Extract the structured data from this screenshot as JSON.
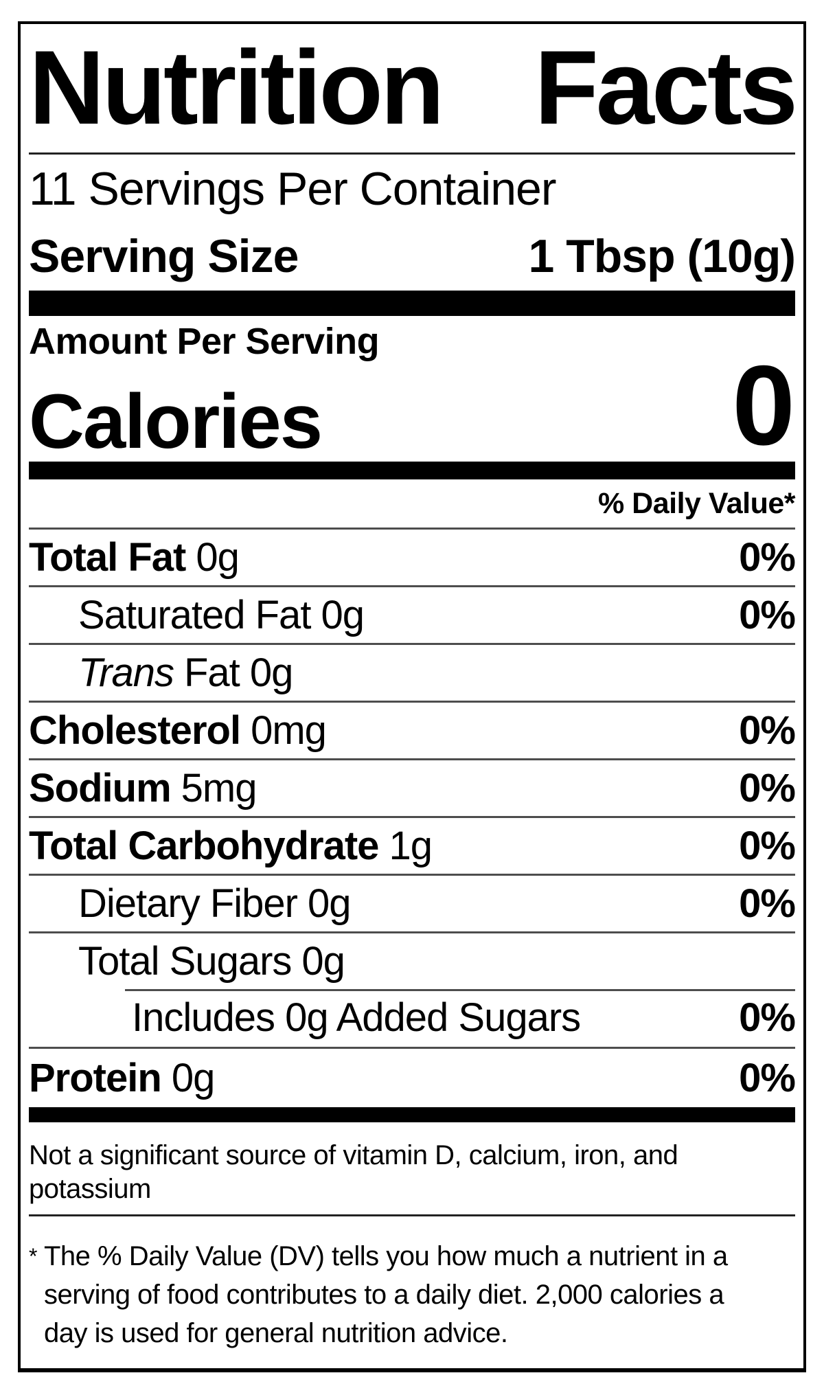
{
  "title": {
    "word1": "Nutrition",
    "word2": "Facts"
  },
  "servings_per_container": "11 Servings Per Container",
  "serving_size": {
    "label": "Serving Size",
    "value": "1 Tbsp (10g)"
  },
  "amount_per_serving_label": "Amount Per Serving",
  "calories": {
    "label": "Calories",
    "value": "0"
  },
  "daily_value_header": "% Daily Value*",
  "nutrients": [
    {
      "name": "Total Fat",
      "amount": "0g",
      "dv": "0%",
      "bold": true,
      "indent": 0,
      "italic": false,
      "partial_divider": false
    },
    {
      "name": "Saturated Fat",
      "amount": "0g",
      "dv": "0%",
      "bold": false,
      "indent": 1,
      "italic": false,
      "partial_divider": false
    },
    {
      "name": "Trans",
      "amount": "Fat 0g",
      "dv": "",
      "bold": false,
      "indent": 1,
      "italic": true,
      "partial_divider": false
    },
    {
      "name": "Cholesterol",
      "amount": "0mg",
      "dv": "0%",
      "bold": true,
      "indent": 0,
      "italic": false,
      "partial_divider": false
    },
    {
      "name": "Sodium",
      "amount": "5mg",
      "dv": "0%",
      "bold": true,
      "indent": 0,
      "italic": false,
      "partial_divider": false
    },
    {
      "name": "Total Carbohydrate",
      "amount": "1g",
      "dv": "0%",
      "bold": true,
      "indent": 0,
      "italic": false,
      "partial_divider": false
    },
    {
      "name": "Dietary Fiber",
      "amount": "0g",
      "dv": "0%",
      "bold": false,
      "indent": 1,
      "italic": false,
      "partial_divider": false
    },
    {
      "name": "Total Sugars",
      "amount": "0g",
      "dv": "",
      "bold": false,
      "indent": 1,
      "italic": false,
      "partial_divider": false
    },
    {
      "name": "Includes 0g Added Sugars",
      "amount": "",
      "dv": "0%",
      "bold": false,
      "indent": 2,
      "italic": false,
      "partial_divider": true
    },
    {
      "name": "Protein",
      "amount": "0g",
      "dv": "0%",
      "bold": true,
      "indent": 0,
      "italic": false,
      "partial_divider": false,
      "last": true
    }
  ],
  "not_significant_note_lines": [
    "Not a significant source of vitamin D, calcium, iron, and",
    "potassium"
  ],
  "footnote": {
    "asterisk": "*",
    "lines": [
      "The % Daily Value (DV) tells you how much a nutrient in a",
      "serving of food contributes to a daily diet. 2,000 calories a",
      "day is used for general nutrition advice."
    ]
  },
  "colors": {
    "text": "#000000",
    "background": "#ffffff",
    "bar": "#000000",
    "divider": "#4d4d4d"
  }
}
